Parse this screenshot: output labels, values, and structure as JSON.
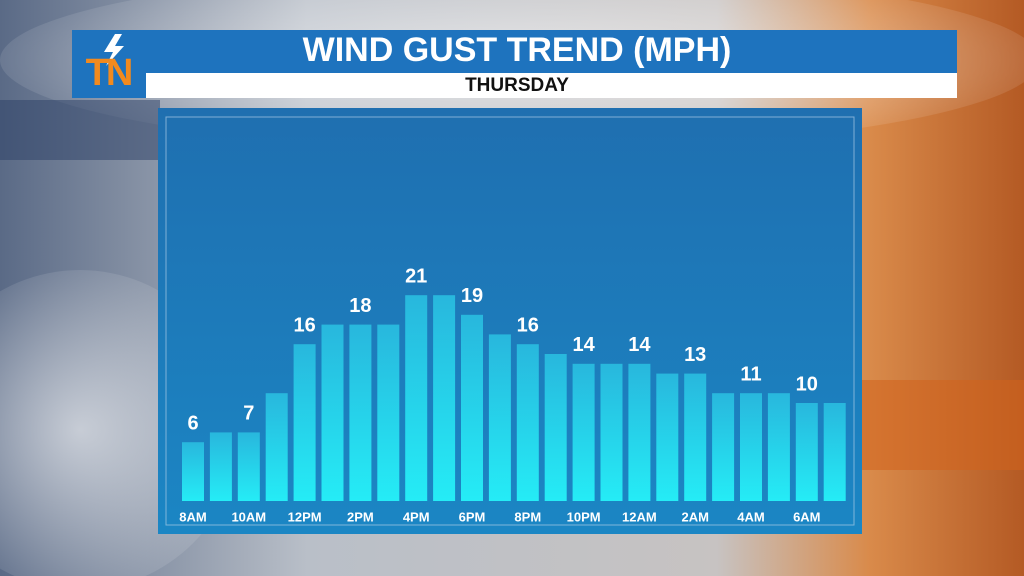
{
  "logo": "TN",
  "chart_data": {
    "type": "bar",
    "title": "WIND GUST TREND (MPH)",
    "subtitle": "THURSDAY",
    "categories": [
      "8AM",
      null,
      "10AM",
      null,
      "12PM",
      null,
      "2PM",
      null,
      "4PM",
      null,
      "6PM",
      null,
      "8PM",
      null,
      "10PM",
      null,
      "12AM",
      null,
      "2AM",
      null,
      "4AM",
      null,
      "6AM",
      null
    ],
    "values": [
      6,
      7,
      7,
      11,
      16,
      18,
      18,
      18,
      21,
      21,
      19,
      17,
      16,
      15,
      14,
      14,
      14,
      13,
      13,
      11,
      11,
      11,
      10,
      10
    ],
    "color": "#2ad0ec"
  }
}
